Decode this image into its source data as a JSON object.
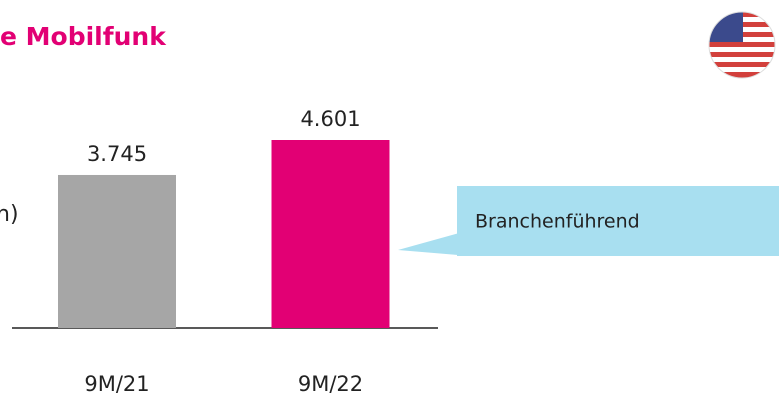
{
  "title": "e Mobilfunk",
  "side_label": "h)",
  "callout": "Branchenführend",
  "chart_data": {
    "type": "bar",
    "categories": [
      "9M/21",
      "9M/22"
    ],
    "values": [
      3745,
      4601
    ],
    "value_labels": [
      "3.745",
      "4.601"
    ],
    "colors": [
      "#a6a6a6",
      "#e20074"
    ]
  }
}
